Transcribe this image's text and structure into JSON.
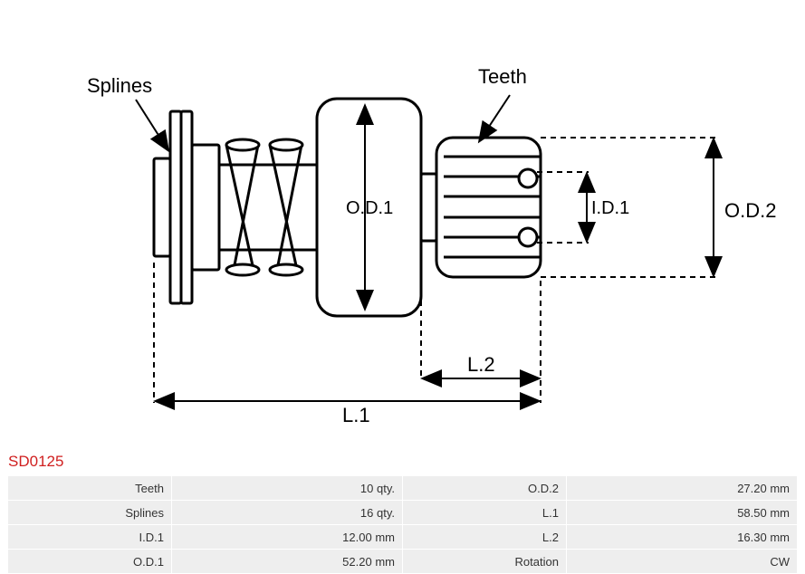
{
  "part_number": "SD0125",
  "diagram": {
    "labels": {
      "splines": "Splines",
      "teeth": "Teeth",
      "od1": "O.D.1",
      "od2": "O.D.2",
      "id1": "I.D.1",
      "l1": "L.1",
      "l2": "L.2"
    },
    "colors": {
      "stroke": "#000000",
      "stroke_width": 3,
      "dash_stroke": "#000000",
      "label_font": "Arial",
      "label_size": 22,
      "label_size_small": 20,
      "background": "#ffffff"
    }
  },
  "specs": {
    "rows": [
      {
        "label1": "Teeth",
        "value1": "10 qty.",
        "label2": "O.D.2",
        "value2": "27.20 mm"
      },
      {
        "label1": "Splines",
        "value1": "16 qty.",
        "label2": "L.1",
        "value2": "58.50 mm"
      },
      {
        "label1": "I.D.1",
        "value1": "12.00 mm",
        "label2": "L.2",
        "value2": "16.30 mm"
      },
      {
        "label1": "O.D.1",
        "value1": "52.20 mm",
        "label2": "Rotation",
        "value2": "CW"
      }
    ]
  }
}
